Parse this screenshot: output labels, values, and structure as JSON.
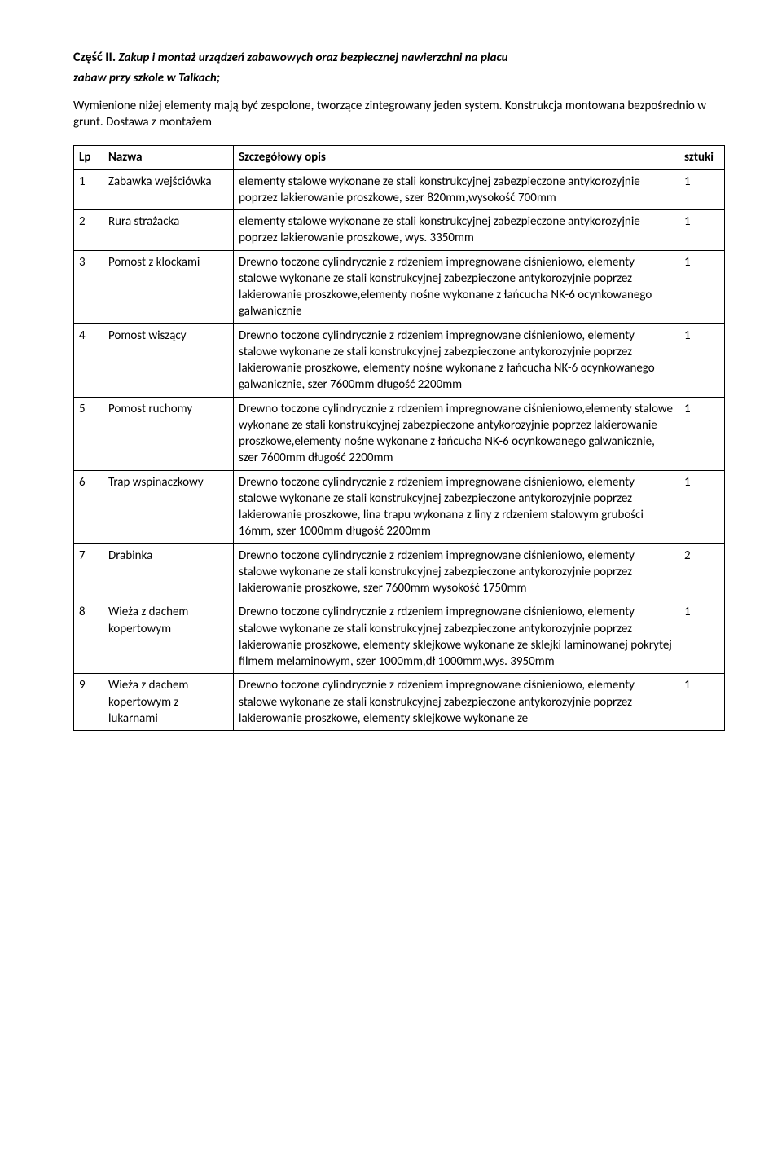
{
  "heading": {
    "prefix": "Część II.",
    "title_line1": "Zakup i montaż urządzeń zabawowych oraz  bezpiecznej nawierzchni na placu",
    "title_line2": "zabaw przy szkole w Talkach;"
  },
  "intro": " Wymienione  niżej elementy mają być zespolone, tworzące zintegrowany jeden system. Konstrukcja montowana bezpośrednio w grunt. Dostawa z montażem",
  "columns": {
    "lp": "Lp",
    "name": "Nazwa",
    "desc": "Szczegółowy opis",
    "qty": "sztuki"
  },
  "rows": [
    {
      "lp": "1",
      "name": "Zabawka wejściówka",
      "desc": "elementy stalowe wykonane ze stali konstrukcyjnej zabezpieczone antykorozyjnie poprzez lakierowanie proszkowe, szer 820mm,wysokość 700mm",
      "qty": "1"
    },
    {
      "lp": "2",
      "name": "Rura strażacka",
      "desc": "elementy stalowe wykonane ze stali konstrukcyjnej zabezpieczone antykorozyjnie poprzez lakierowanie proszkowe, wys. 3350mm",
      "qty": "1"
    },
    {
      "lp": "3",
      "name": "Pomost z klockami",
      "desc": "Drewno toczone cylindrycznie z rdzeniem impregnowane ciśnieniowo, elementy stalowe wykonane ze stali konstrukcyjnej zabezpieczone antykorozyjnie poprzez lakierowanie proszkowe,elementy nośne wykonane z łańcucha NK-6 ocynkowanego galwanicznie",
      "qty": "1"
    },
    {
      "lp": "4",
      "name": "Pomost wiszący",
      "desc": "Drewno toczone cylindrycznie z rdzeniem impregnowane ciśnieniowo, elementy stalowe wykonane ze stali konstrukcyjnej zabezpieczone antykorozyjnie poprzez lakierowanie proszkowe, elementy nośne wykonane z łańcucha NK-6 ocynkowanego galwanicznie, szer 7600mm długość 2200mm",
      "qty": "1"
    },
    {
      "lp": "5",
      "name": "Pomost ruchomy",
      "desc": "Drewno toczone cylindrycznie z rdzeniem impregnowane ciśnieniowo,elementy stalowe wykonane ze stali konstrukcyjnej zabezpieczone antykorozyjnie poprzez lakierowanie proszkowe,elementy nośne wykonane z łańcucha NK-6 ocynkowanego galwanicznie, szer 7600mm długość 2200mm",
      "qty": "1"
    },
    {
      "lp": "6",
      "name": "Trap wspinaczkowy",
      "desc": "Drewno toczone cylindrycznie z rdzeniem impregnowane ciśnieniowo, elementy stalowe wykonane ze stali konstrukcyjnej zabezpieczone antykorozyjnie poprzez lakierowanie proszkowe, lina trapu wykonana z liny z rdzeniem stalowym grubości 16mm, szer 1000mm długość 2200mm",
      "qty": "1"
    },
    {
      "lp": "7",
      "name": "Drabinka",
      "desc": "Drewno toczone cylindrycznie z rdzeniem impregnowane ciśnieniowo, elementy stalowe wykonane ze stali konstrukcyjnej zabezpieczone antykorozyjnie poprzez lakierowanie proszkowe, szer 7600mm wysokość 1750mm",
      "qty": "2"
    },
    {
      "lp": "8",
      "name": "Wieża z dachem kopertowym",
      "desc": "Drewno toczone cylindrycznie z rdzeniem impregnowane ciśnieniowo, elementy stalowe wykonane ze stali konstrukcyjnej zabezpieczone antykorozyjnie poprzez lakierowanie proszkowe, elementy sklejkowe wykonane ze sklejki laminowanej pokrytej filmem melaminowym,  szer 1000mm,dł 1000mm,wys. 3950mm",
      "qty": "1"
    },
    {
      "lp": "9",
      "name": "Wieża z dachem kopertowym z lukarnami",
      "desc": "Drewno toczone cylindrycznie z rdzeniem impregnowane ciśnieniowo, elementy stalowe wykonane ze stali konstrukcyjnej zabezpieczone antykorozyjnie poprzez lakierowanie proszkowe, elementy sklejkowe wykonane ze",
      "qty": "1"
    }
  ]
}
